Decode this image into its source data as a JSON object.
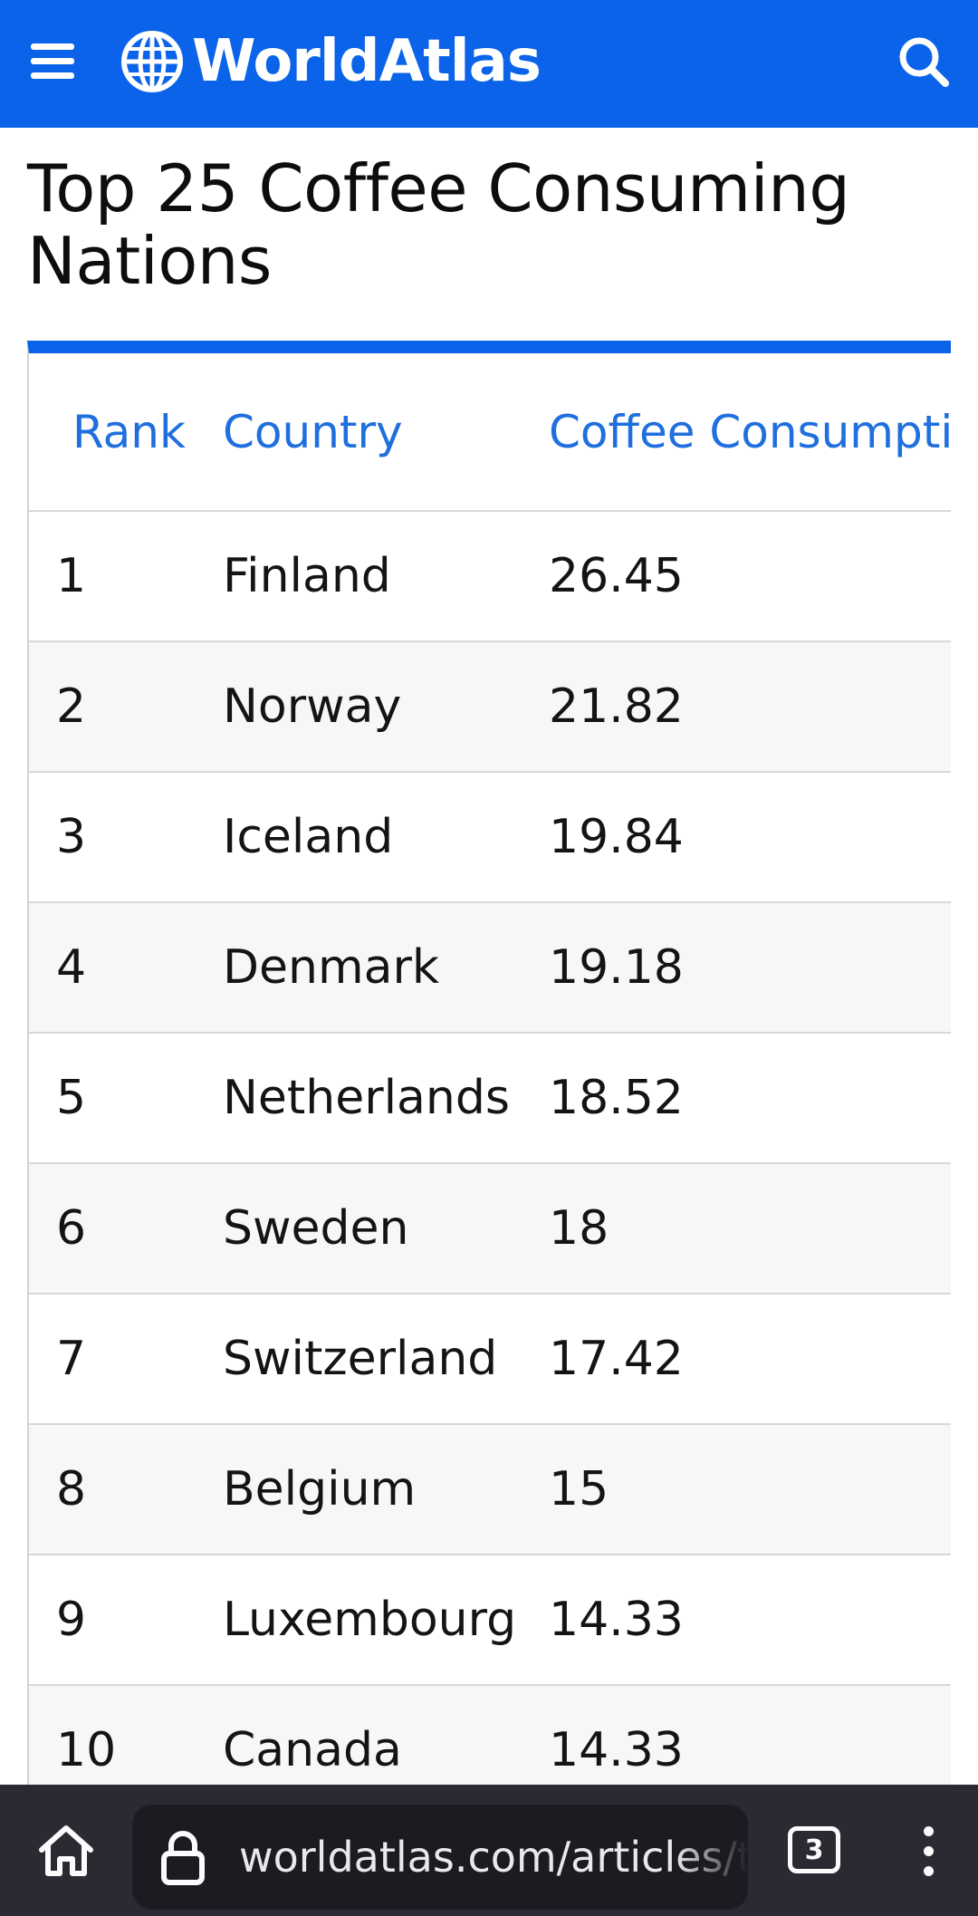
{
  "header": {
    "brand": "WorldAtlas",
    "menu_icon": "hamburger-menu-icon",
    "logo_icon": "globe-icon",
    "search_icon": "search-icon",
    "bg_color": "#0a63e8"
  },
  "page": {
    "title": "Top 25 Coffee Consuming Nations"
  },
  "table": {
    "accent_color": "#0a63e8",
    "columns": [
      "Rank",
      "Country",
      "Coffee Consumption"
    ],
    "rows": [
      {
        "rank": "1",
        "country": "Finland",
        "value": "26.45"
      },
      {
        "rank": "2",
        "country": "Norway",
        "value": "21.82"
      },
      {
        "rank": "3",
        "country": "Iceland",
        "value": "19.84"
      },
      {
        "rank": "4",
        "country": "Denmark",
        "value": "19.18"
      },
      {
        "rank": "5",
        "country": "Netherlands",
        "value": "18.52"
      },
      {
        "rank": "6",
        "country": "Sweden",
        "value": "18"
      },
      {
        "rank": "7",
        "country": "Switzerland",
        "value": "17.42"
      },
      {
        "rank": "8",
        "country": "Belgium",
        "value": "15"
      },
      {
        "rank": "9",
        "country": "Luxembourg",
        "value": "14.33"
      },
      {
        "rank": "10",
        "country": "Canada",
        "value": "14.33"
      }
    ]
  },
  "browser": {
    "url": "worldatlas.com/articles/top",
    "tab_count": "3",
    "home_icon": "home-icon",
    "lock_icon": "lock-icon",
    "more_icon": "more-vertical-icon"
  }
}
